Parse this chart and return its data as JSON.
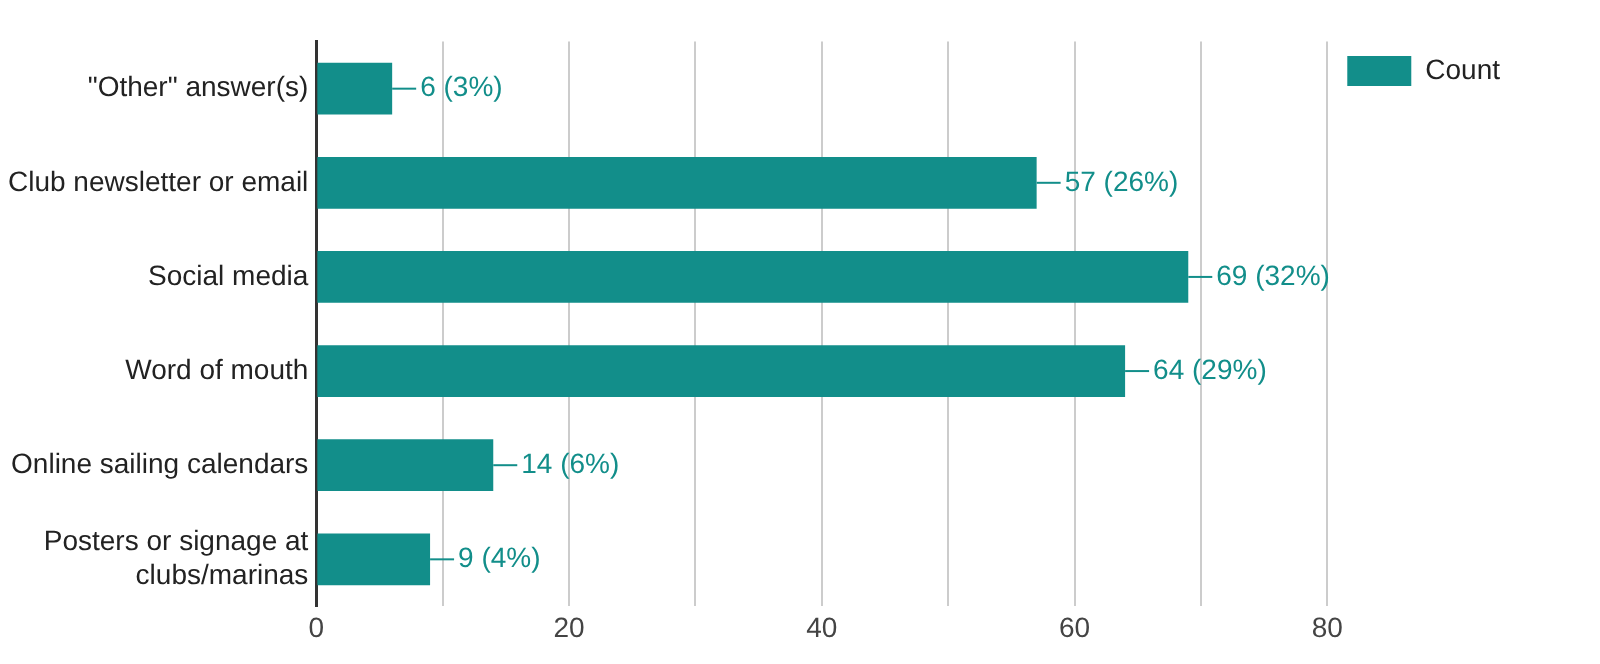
{
  "chart_data": {
    "type": "bar",
    "orientation": "horizontal",
    "categories": [
      "\"Other\" answer(s)",
      "Club newsletter or email",
      "Social media",
      "Word of mouth",
      "Online sailing calendars",
      "Posters or signage at clubs/marinas"
    ],
    "series": [
      {
        "name": "Count",
        "color": "#128e8a",
        "values": [
          6,
          57,
          69,
          64,
          14,
          9
        ],
        "value_labels": [
          "6 (3%)",
          "57 (26%)",
          "69 (32%)",
          "64 (29%)",
          "14 (6%)",
          "9 (4%)"
        ]
      }
    ],
    "xlim": [
      0,
      80
    ],
    "xticks": [
      0,
      {
        "value": 10,
        "label": null
      },
      20,
      {
        "value": 30,
        "label": null
      },
      40,
      {
        "value": 50,
        "label": null
      },
      60,
      {
        "value": 70,
        "label": null
      },
      80
    ],
    "grid": "x",
    "legend": "top right"
  }
}
